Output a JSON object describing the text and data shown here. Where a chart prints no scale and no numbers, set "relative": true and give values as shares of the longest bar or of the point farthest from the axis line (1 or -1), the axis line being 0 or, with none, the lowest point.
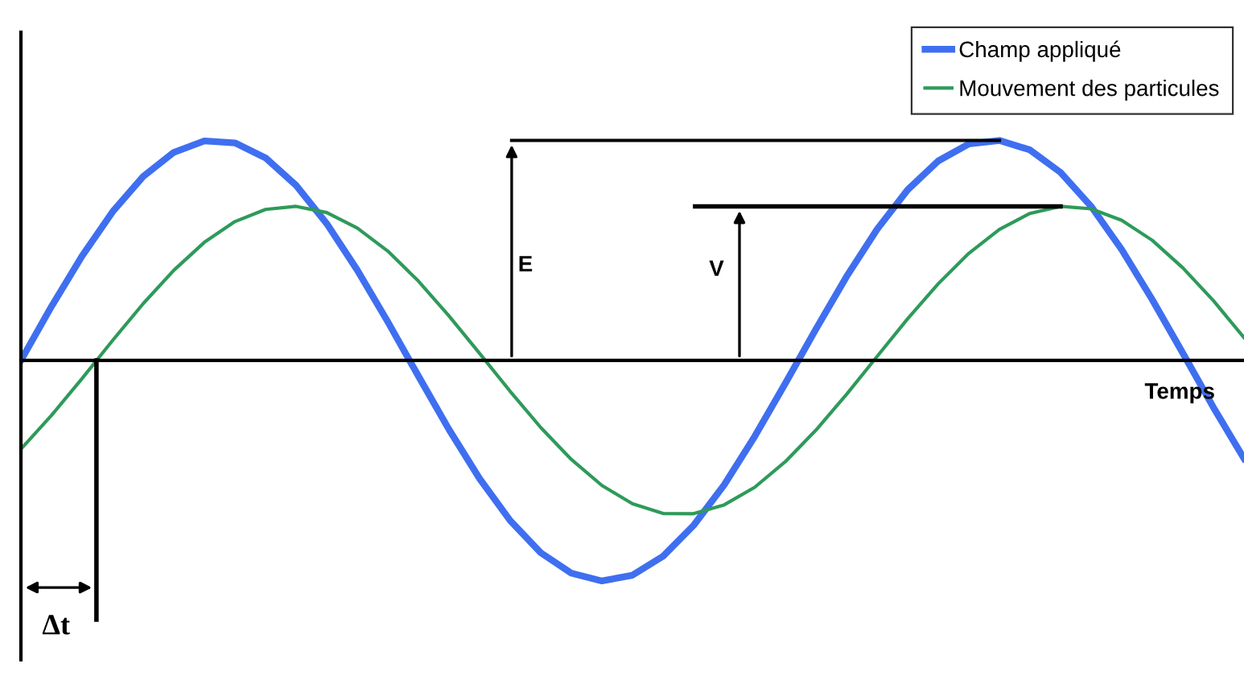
{
  "chart_data": {
    "type": "line",
    "relative": true,
    "xlabel": "Temps",
    "legend": "top right",
    "marker": "none",
    "line_style": "solid",
    "categories": [
      null,
      null,
      null,
      null,
      null,
      null,
      null,
      null,
      null,
      null,
      null,
      null,
      null,
      null,
      null,
      null,
      null,
      null,
      null,
      null,
      null,
      null,
      null,
      null,
      null,
      null,
      null,
      null,
      null,
      null,
      null,
      null,
      null,
      null,
      null,
      null,
      null,
      null,
      null,
      null,
      null
    ],
    "series": [
      {
        "name": "Champ appliqué",
        "color": "#3f6ff0",
        "values": [
          0,
          0.245,
          0.474,
          0.675,
          0.835,
          0.944,
          0.996,
          0.987,
          0.919,
          0.794,
          0.621,
          0.41,
          0.175,
          -0.071,
          -0.313,
          -0.536,
          -0.726,
          -0.872,
          -0.965,
          -1.0,
          -0.974,
          -0.888,
          -0.748,
          -0.564,
          -0.344,
          -0.104,
          0.142,
          0.38,
          0.595,
          0.774,
          0.905,
          0.982,
          0.998,
          0.955,
          0.853,
          0.699,
          0.503,
          0.276,
          0.033,
          -0.213,
          -0.445
        ]
      },
      {
        "name": "Mouvement des particules",
        "color": "#2e9a5a",
        "values": [
          -0.402,
          -0.249,
          -0.082,
          0.091,
          0.258,
          0.409,
          0.536,
          0.63,
          0.685,
          0.699,
          0.671,
          0.601,
          0.496,
          0.36,
          0.202,
          0.032,
          -0.14,
          -0.304,
          -0.449,
          -0.567,
          -0.65,
          -0.694,
          -0.695,
          -0.655,
          -0.575,
          -0.459,
          -0.316,
          -0.154,
          0.018,
          0.189,
          0.348,
          0.486,
          0.594,
          0.667,
          0.699,
          0.688,
          0.636,
          0.545,
          0.42,
          0.271,
          0.104
        ]
      }
    ],
    "annotations": [
      "E",
      "V",
      "Δt"
    ]
  }
}
